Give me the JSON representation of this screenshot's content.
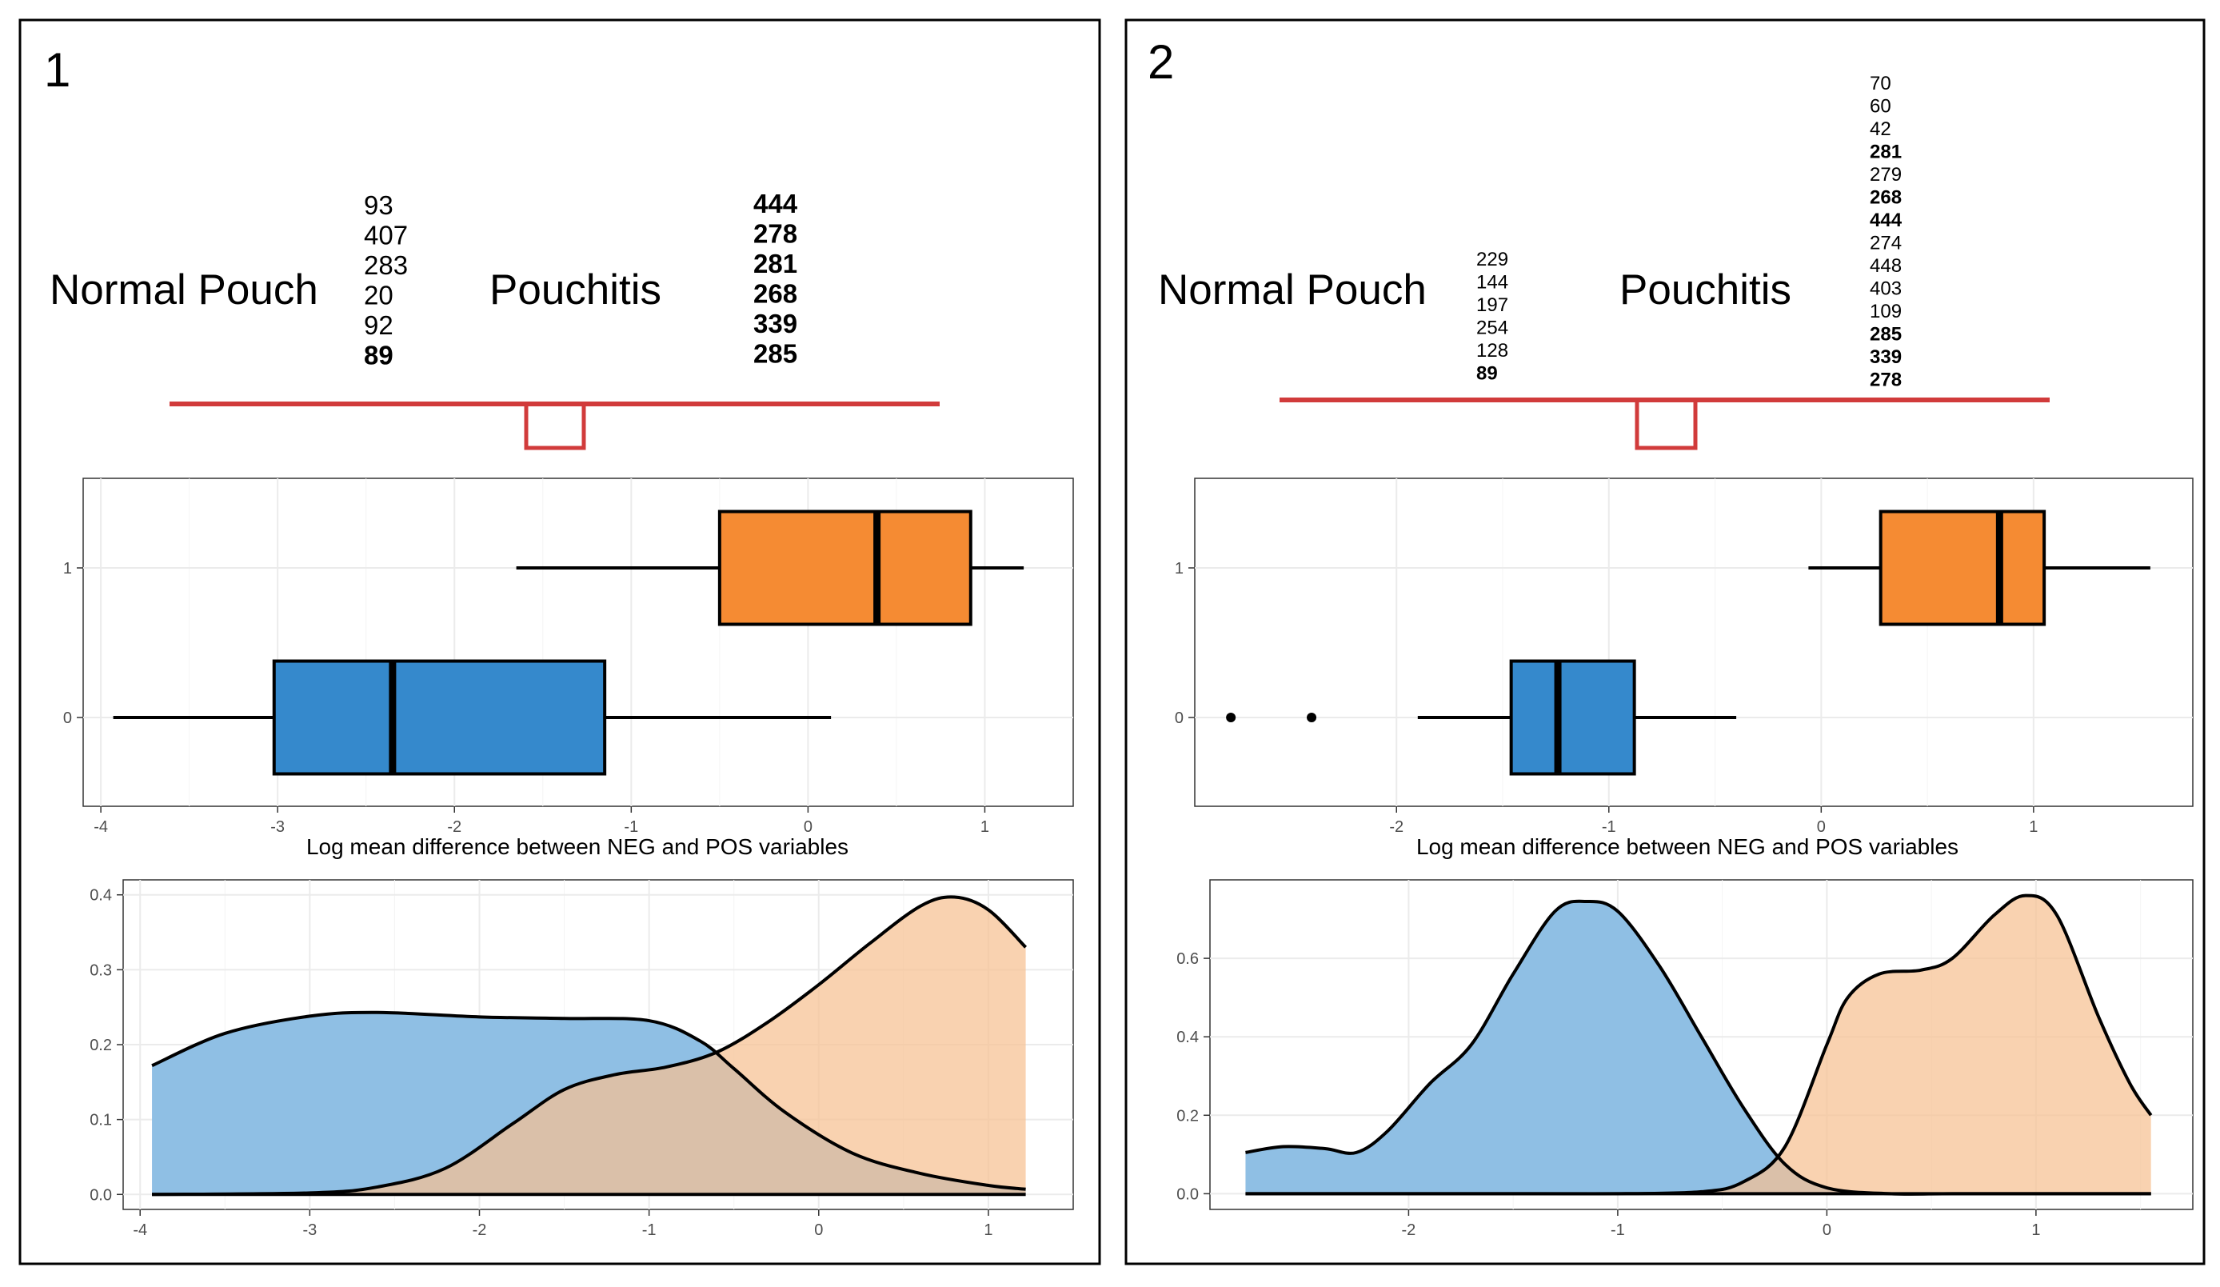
{
  "panels": [
    {
      "number": "1",
      "group_labels": [
        "Normal Pouch",
        "Pouchitis"
      ],
      "normal_vars": [
        {
          "label": "93",
          "bold": false
        },
        {
          "label": "407",
          "bold": false
        },
        {
          "label": "283",
          "bold": false
        },
        {
          "label": "20",
          "bold": false
        },
        {
          "label": "92",
          "bold": false
        },
        {
          "label": "89",
          "bold": true
        }
      ],
      "pouchitis_vars": [
        {
          "label": "444",
          "bold": true
        },
        {
          "label": "278",
          "bold": true
        },
        {
          "label": "281",
          "bold": true
        },
        {
          "label": "268",
          "bold": true
        },
        {
          "label": "339",
          "bold": true
        },
        {
          "label": "285",
          "bold": true
        }
      ]
    },
    {
      "number": "2",
      "group_labels": [
        "Normal Pouch",
        "Pouchitis"
      ],
      "normal_vars": [
        {
          "label": "229",
          "bold": false
        },
        {
          "label": "144",
          "bold": false
        },
        {
          "label": "197",
          "bold": false
        },
        {
          "label": "254",
          "bold": false
        },
        {
          "label": "128",
          "bold": false
        },
        {
          "label": "89",
          "bold": true
        }
      ],
      "pouchitis_vars": [
        {
          "label": "70",
          "bold": false
        },
        {
          "label": "60",
          "bold": false
        },
        {
          "label": "42",
          "bold": false
        },
        {
          "label": "281",
          "bold": true
        },
        {
          "label": "279",
          "bold": false
        },
        {
          "label": "268",
          "bold": true
        },
        {
          "label": "444",
          "bold": true
        },
        {
          "label": "274",
          "bold": false
        },
        {
          "label": "448",
          "bold": false
        },
        {
          "label": "403",
          "bold": false
        },
        {
          "label": "109",
          "bold": false
        },
        {
          "label": "285",
          "bold": true
        },
        {
          "label": "339",
          "bold": true
        },
        {
          "label": "278",
          "bold": true
        }
      ]
    }
  ],
  "colors": {
    "group0": "#3589cc",
    "group1": "#f58b33",
    "density0": "#8fbfe4",
    "density1": "#f7c192",
    "overlap": "#c3a48a",
    "bracket": "#d13b3b",
    "grid": "#ebebeb"
  },
  "chart_data": [
    {
      "type": "boxplot",
      "panel": "1",
      "xlabel": "Log mean difference between NEG and POS variables",
      "xlim": [
        -4.1,
        1.5
      ],
      "x_ticks": [
        -4,
        -3,
        -2,
        -1,
        0,
        1
      ],
      "y_categories": [
        "0",
        "1"
      ],
      "boxes": [
        {
          "group": "0",
          "whisker_low": -3.93,
          "q1": -3.02,
          "median": -2.35,
          "q3": -1.15,
          "whisker_high": 0.13,
          "outliers": []
        },
        {
          "group": "1",
          "whisker_low": -1.65,
          "q1": -0.5,
          "median": 0.39,
          "q3": 0.92,
          "whisker_high": 1.22,
          "outliers": []
        }
      ]
    },
    {
      "type": "density",
      "panel": "1",
      "xlim": [
        -4.1,
        1.5
      ],
      "ylim": [
        -0.02,
        0.42
      ],
      "x_ticks": [
        -4,
        -3,
        -2,
        -1,
        0,
        1
      ],
      "y_ticks": [
        0.0,
        0.1,
        0.2,
        0.3,
        0.4
      ],
      "series": [
        {
          "name": "0",
          "x": [
            -3.93,
            -3.5,
            -3.0,
            -2.6,
            -2.0,
            -1.5,
            -1.0,
            -0.7,
            -0.5,
            -0.2,
            0.2,
            0.6,
            1.0,
            1.22
          ],
          "y": [
            0.172,
            0.215,
            0.238,
            0.243,
            0.237,
            0.235,
            0.232,
            0.205,
            0.168,
            0.11,
            0.055,
            0.028,
            0.012,
            0.007
          ]
        },
        {
          "name": "1",
          "x": [
            -3.93,
            -3.0,
            -2.6,
            -2.2,
            -1.8,
            -1.5,
            -1.2,
            -0.9,
            -0.6,
            -0.3,
            0.0,
            0.3,
            0.6,
            0.8,
            1.0,
            1.22
          ],
          "y": [
            0.0,
            0.002,
            0.01,
            0.035,
            0.095,
            0.14,
            0.16,
            0.17,
            0.19,
            0.23,
            0.28,
            0.335,
            0.385,
            0.397,
            0.38,
            0.33
          ]
        }
      ]
    },
    {
      "type": "boxplot",
      "panel": "2",
      "xlabel": "Log mean difference between NEG and POS variables",
      "xlim": [
        -2.95,
        1.75
      ],
      "x_ticks": [
        -2,
        -1,
        0,
        1
      ],
      "y_categories": [
        "0",
        "1"
      ],
      "boxes": [
        {
          "group": "0",
          "whisker_low": -1.9,
          "q1": -1.46,
          "median": -1.24,
          "q3": -0.88,
          "whisker_high": -0.4,
          "outliers": [
            -2.78,
            -2.4
          ]
        },
        {
          "group": "1",
          "whisker_low": -0.06,
          "q1": 0.28,
          "median": 0.84,
          "q3": 1.05,
          "whisker_high": 1.55,
          "outliers": []
        }
      ]
    },
    {
      "type": "density",
      "panel": "2",
      "xlim": [
        -2.95,
        1.75
      ],
      "ylim": [
        -0.04,
        0.8
      ],
      "x_ticks": [
        -2,
        -1,
        0,
        1
      ],
      "y_ticks": [
        0.0,
        0.2,
        0.4,
        0.6
      ],
      "series": [
        {
          "name": "0",
          "x": [
            -2.78,
            -2.6,
            -2.4,
            -2.25,
            -2.1,
            -1.9,
            -1.7,
            -1.5,
            -1.3,
            -1.15,
            -1.0,
            -0.8,
            -0.6,
            -0.4,
            -0.2,
            0.0,
            0.3,
            0.6,
            1.0,
            1.3,
            1.55
          ],
          "y": [
            0.105,
            0.12,
            0.115,
            0.105,
            0.16,
            0.28,
            0.38,
            0.56,
            0.72,
            0.745,
            0.72,
            0.58,
            0.4,
            0.22,
            0.075,
            0.015,
            0.0,
            0.0,
            0.0,
            0.0,
            0.0
          ]
        },
        {
          "name": "1",
          "x": [
            -2.78,
            -1.5,
            -1.0,
            -0.6,
            -0.4,
            -0.2,
            0.0,
            0.1,
            0.25,
            0.45,
            0.6,
            0.8,
            0.95,
            1.1,
            1.3,
            1.45,
            1.55
          ],
          "y": [
            0.0,
            0.0,
            0.0,
            0.005,
            0.03,
            0.12,
            0.38,
            0.5,
            0.56,
            0.57,
            0.6,
            0.71,
            0.76,
            0.71,
            0.45,
            0.28,
            0.2
          ]
        }
      ]
    }
  ]
}
